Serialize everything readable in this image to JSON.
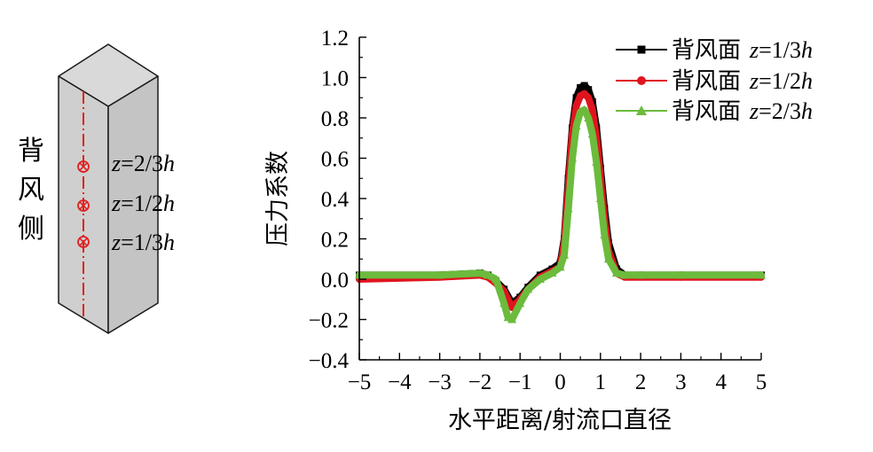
{
  "diagram": {
    "side_label": [
      "背",
      "风",
      "侧"
    ],
    "levels": [
      {
        "label": "z=2/3h",
        "var": "z",
        "rest": "=2/3",
        "unit": "h"
      },
      {
        "label": "z=1/2h",
        "var": "z",
        "rest": "=1/2",
        "unit": "h"
      },
      {
        "label": "z=1/3h",
        "var": "z",
        "rest": "=1/3",
        "unit": "h"
      }
    ],
    "colors": {
      "face_front": "#cfcfcf",
      "face_side": "#c4c4c4",
      "face_top": "#d9d9d9",
      "edge": "#1a1a1a",
      "centerline": "#e02020"
    }
  },
  "chart_data": {
    "type": "line",
    "xlabel": "水平距离/射流口直径",
    "ylabel": "压力系数",
    "xlim": [
      -5,
      5
    ],
    "ylim": [
      -0.4,
      1.2
    ],
    "xticks": [
      -5,
      -4,
      -3,
      -2,
      -1,
      0,
      1,
      2,
      3,
      4,
      5
    ],
    "xtick_labels": [
      "−5",
      "−4",
      "−3",
      "−2",
      "−1",
      "0",
      "1",
      "2",
      "3",
      "4",
      "5"
    ],
    "yticks": [
      -0.4,
      -0.2,
      0.0,
      0.2,
      0.4,
      0.6,
      0.8,
      1.0,
      1.2
    ],
    "ytick_labels": [
      "−0.4",
      "−0.2",
      "0.0",
      "0.2",
      "0.4",
      "0.6",
      "0.8",
      "1.0",
      "1.2"
    ],
    "grid": false,
    "legend_position": "top-right",
    "series": [
      {
        "name": "背风面 z=1/3h",
        "name_cjk": "背风面",
        "name_var": "z",
        "name_rest": "=1/3",
        "name_unit": "h",
        "color": "#000000",
        "marker": "square",
        "x": [
          -5.0,
          -3.0,
          -2.0,
          -1.8,
          -1.6,
          -1.4,
          -1.2,
          -1.0,
          -0.8,
          -0.5,
          -0.2,
          0.0,
          0.1,
          0.2,
          0.3,
          0.4,
          0.5,
          0.6,
          0.7,
          0.8,
          0.9,
          1.0,
          1.1,
          1.2,
          1.4,
          1.6,
          2.0,
          3.0,
          5.0
        ],
        "y": [
          0.02,
          0.02,
          0.03,
          0.02,
          -0.01,
          -0.05,
          -0.12,
          -0.09,
          -0.04,
          0.02,
          0.05,
          0.08,
          0.2,
          0.5,
          0.75,
          0.9,
          0.95,
          0.96,
          0.94,
          0.88,
          0.75,
          0.55,
          0.35,
          0.18,
          0.05,
          0.02,
          0.02,
          0.02,
          0.02
        ]
      },
      {
        "name": "背风面 z=1/2h",
        "name_cjk": "背风面",
        "name_var": "z",
        "name_rest": "=1/2",
        "name_unit": "h",
        "color": "#e0141e",
        "marker": "circle",
        "x": [
          -5.0,
          -3.0,
          -2.0,
          -1.8,
          -1.6,
          -1.4,
          -1.2,
          -1.0,
          -0.8,
          -0.5,
          -0.2,
          0.0,
          0.1,
          0.2,
          0.3,
          0.4,
          0.5,
          0.6,
          0.7,
          0.8,
          0.9,
          1.0,
          1.1,
          1.2,
          1.4,
          1.6,
          2.0,
          3.0,
          5.0
        ],
        "y": [
          0.0,
          0.01,
          0.02,
          0.01,
          -0.02,
          -0.06,
          -0.14,
          -0.1,
          -0.05,
          0.01,
          0.04,
          0.06,
          0.18,
          0.45,
          0.72,
          0.86,
          0.91,
          0.92,
          0.9,
          0.84,
          0.7,
          0.5,
          0.3,
          0.14,
          0.03,
          0.01,
          0.01,
          0.01,
          0.01
        ]
      },
      {
        "name": "背风面 z=2/3h",
        "name_cjk": "背风面",
        "name_var": "z",
        "name_rest": "=2/3",
        "name_unit": "h",
        "color": "#6cbb3c",
        "marker": "triangle",
        "x": [
          -5.0,
          -3.0,
          -2.0,
          -1.8,
          -1.6,
          -1.4,
          -1.3,
          -1.2,
          -1.0,
          -0.8,
          -0.5,
          -0.2,
          0.0,
          0.1,
          0.2,
          0.3,
          0.4,
          0.5,
          0.6,
          0.7,
          0.8,
          0.9,
          1.0,
          1.1,
          1.2,
          1.4,
          1.6,
          2.0,
          3.0,
          5.0
        ],
        "y": [
          0.02,
          0.02,
          0.03,
          0.02,
          0.0,
          -0.12,
          -0.19,
          -0.2,
          -0.12,
          -0.05,
          0.0,
          0.03,
          0.06,
          0.12,
          0.35,
          0.6,
          0.76,
          0.83,
          0.84,
          0.8,
          0.72,
          0.58,
          0.4,
          0.22,
          0.1,
          0.03,
          0.02,
          0.02,
          0.02,
          0.02
        ]
      }
    ]
  }
}
